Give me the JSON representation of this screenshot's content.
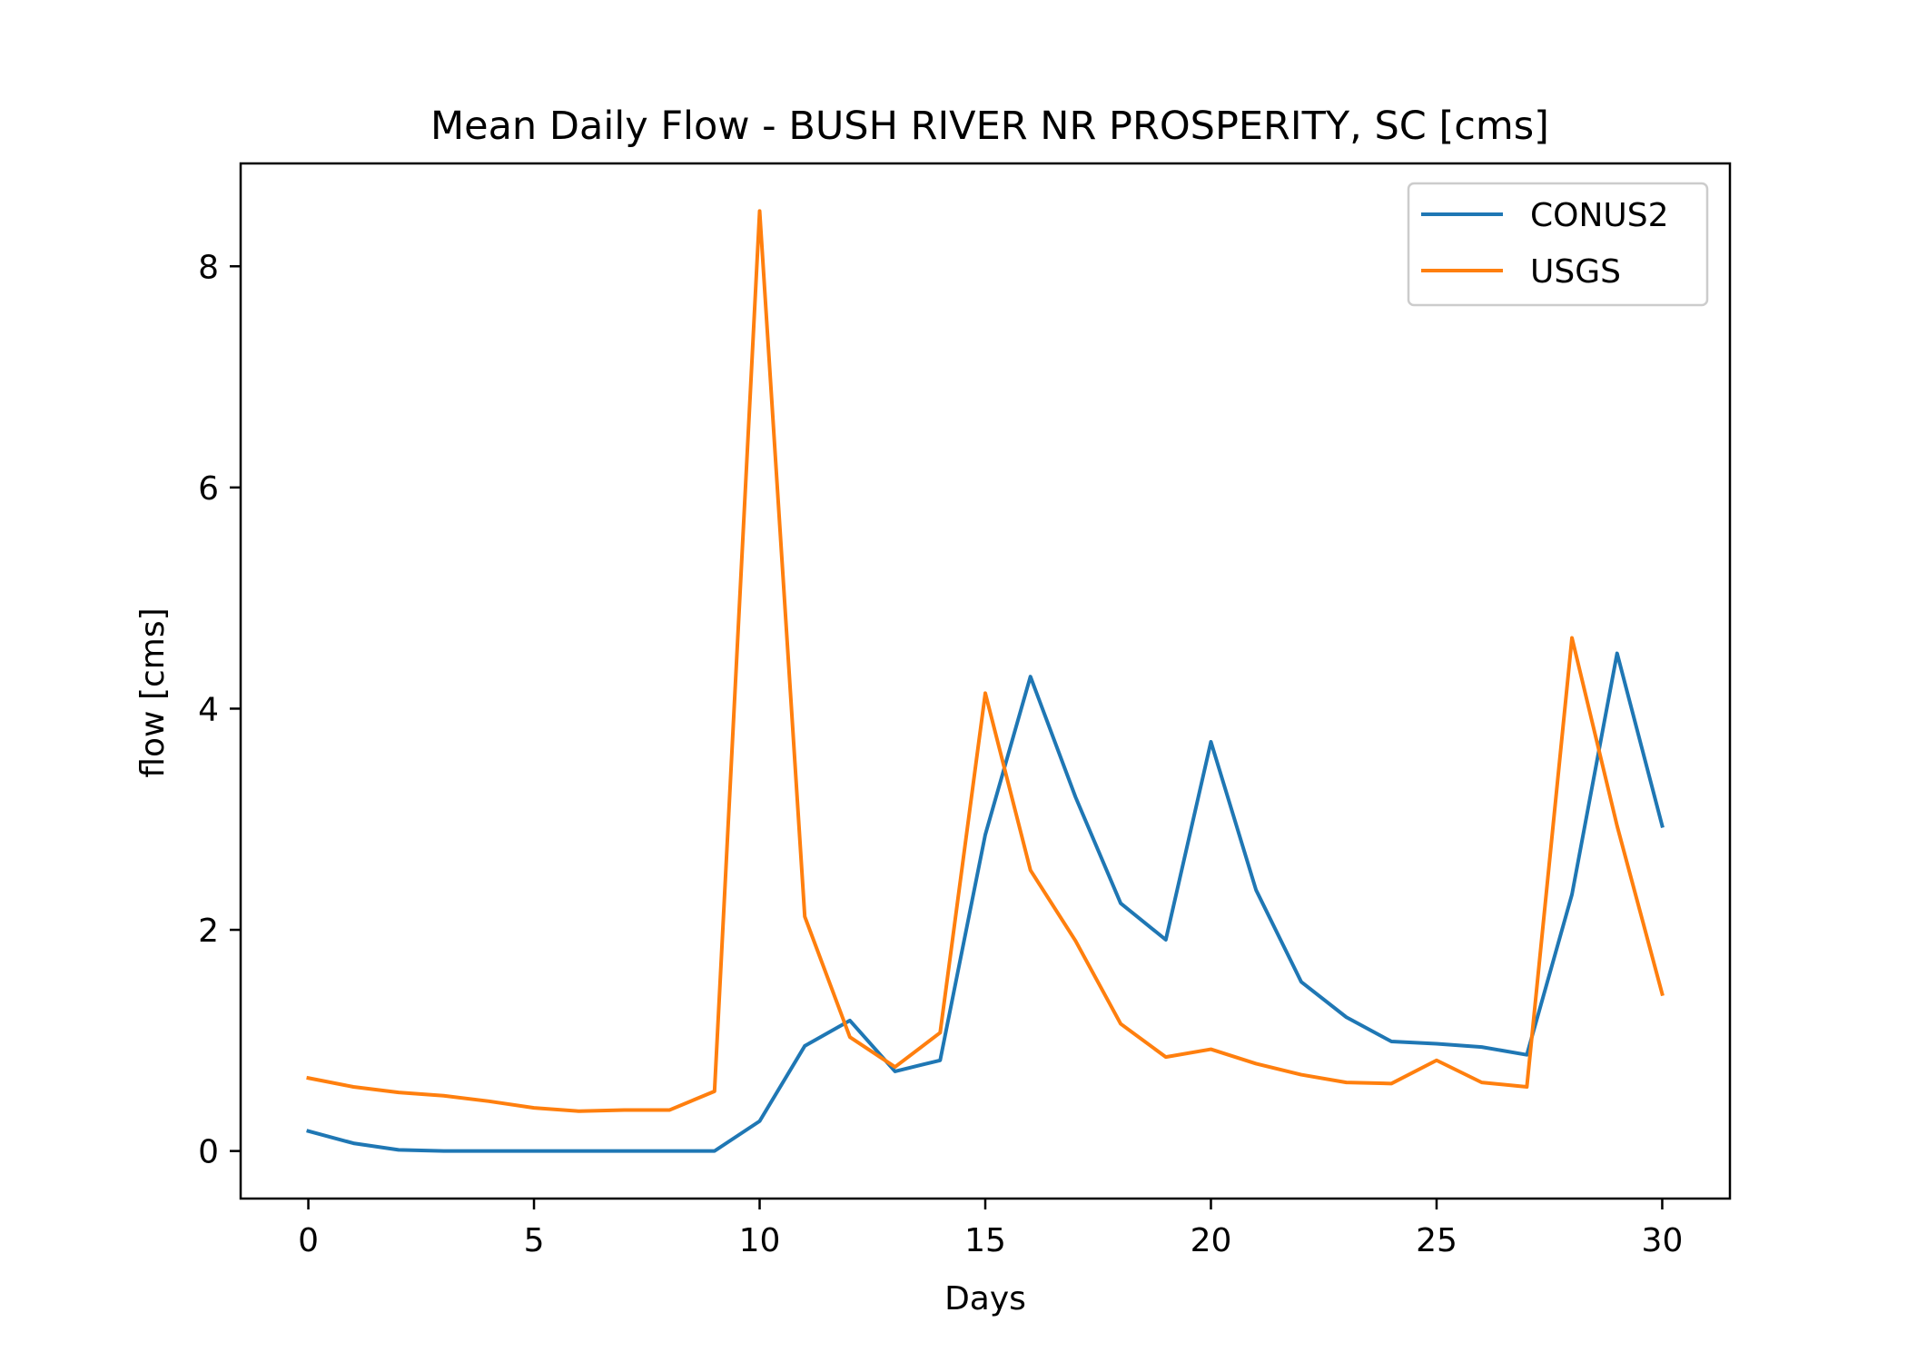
{
  "chart_data": {
    "type": "line",
    "title": "Mean Daily Flow - BUSH RIVER NR PROSPERITY, SC [cms]",
    "xlabel": "Days",
    "ylabel": "flow [cms]",
    "xlim": [
      -1.5,
      31.5
    ],
    "ylim": [
      -0.43,
      8.93
    ],
    "xticks": [
      0,
      5,
      10,
      15,
      20,
      25,
      30
    ],
    "yticks": [
      0,
      2,
      4,
      6,
      8
    ],
    "grid": false,
    "legend_position": "top-right",
    "x": [
      0,
      1,
      2,
      3,
      4,
      5,
      6,
      7,
      8,
      9,
      10,
      11,
      12,
      13,
      14,
      15,
      16,
      17,
      18,
      19,
      20,
      21,
      22,
      23,
      24,
      25,
      26,
      27,
      28,
      29,
      30
    ],
    "series": [
      {
        "name": "CONUS2",
        "color": "#1f77b4",
        "values": [
          0.18,
          0.07,
          0.01,
          0.0,
          0.0,
          0.0,
          0.0,
          0.0,
          0.0,
          0.0,
          0.27,
          0.95,
          1.18,
          0.72,
          0.82,
          2.86,
          4.29,
          3.2,
          2.24,
          1.91,
          3.7,
          2.36,
          1.53,
          1.21,
          0.99,
          0.97,
          0.94,
          0.87,
          2.32,
          4.5,
          2.94
        ]
      },
      {
        "name": "USGS",
        "color": "#ff7f0e",
        "values": [
          0.66,
          0.58,
          0.53,
          0.5,
          0.45,
          0.39,
          0.36,
          0.37,
          0.37,
          0.54,
          8.5,
          2.12,
          1.03,
          0.76,
          1.07,
          4.14,
          2.54,
          1.9,
          1.15,
          0.85,
          0.92,
          0.79,
          0.69,
          0.62,
          0.61,
          0.82,
          0.62,
          0.58,
          4.64,
          2.94,
          1.42
        ]
      }
    ]
  }
}
